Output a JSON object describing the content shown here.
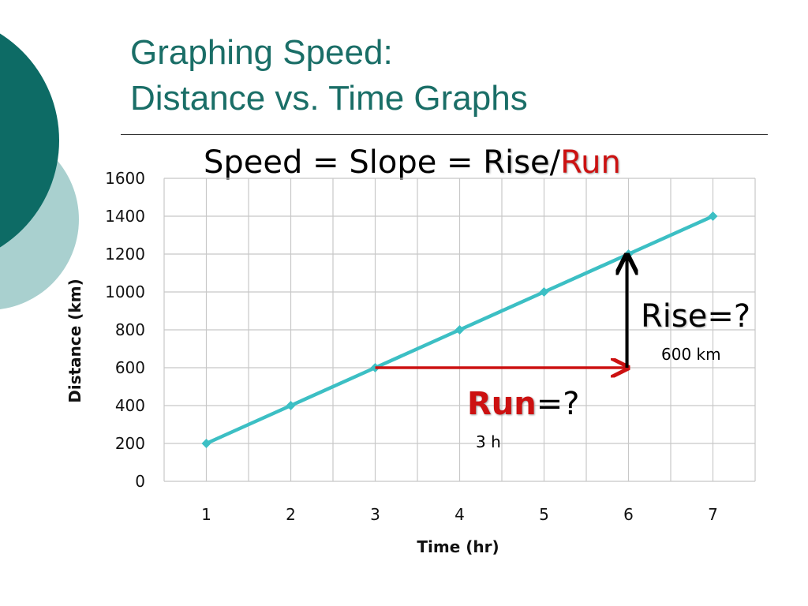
{
  "slide": {
    "title_line1": "Graphing Speed:",
    "title_line2": "Distance vs. Time Graphs",
    "colors": {
      "title": "#1a6e67",
      "deco_dark": "#0d6b65",
      "deco_light": "#a9d0cf",
      "run_red": "#cc1111"
    }
  },
  "formula": {
    "prefix": "Speed = Slope = ",
    "rise": "Rise",
    "separator": "/",
    "run": "Run"
  },
  "annotations": {
    "rise_word": "Rise",
    "rise_suffix": "=?",
    "rise_value": "600 km",
    "run_word": "Run",
    "run_suffix": "=?",
    "run_value": "3 h",
    "rise_arrow": {
      "x": 6,
      "from_y": 600,
      "to_y": 1200,
      "color": "#000000"
    },
    "run_arrow": {
      "y": 600,
      "from_x": 3,
      "to_x": 6,
      "color": "#cc1111"
    }
  },
  "chart_data": {
    "type": "line",
    "x": [
      1,
      2,
      3,
      4,
      5,
      6,
      7
    ],
    "series": [
      {
        "values": [
          200,
          400,
          600,
          800,
          1000,
          1200,
          1400
        ],
        "color": "#3cbfc4"
      }
    ],
    "xlabel": "Time (hr)",
    "ylabel": "Distance (km)",
    "ylim": [
      0,
      1600
    ],
    "yticks": [
      0,
      200,
      400,
      600,
      800,
      1000,
      1200,
      1400,
      1600
    ],
    "xlim": [
      0.5,
      7.5
    ],
    "grid": true,
    "grid_color": "#c8c8c8",
    "legend": "none"
  }
}
